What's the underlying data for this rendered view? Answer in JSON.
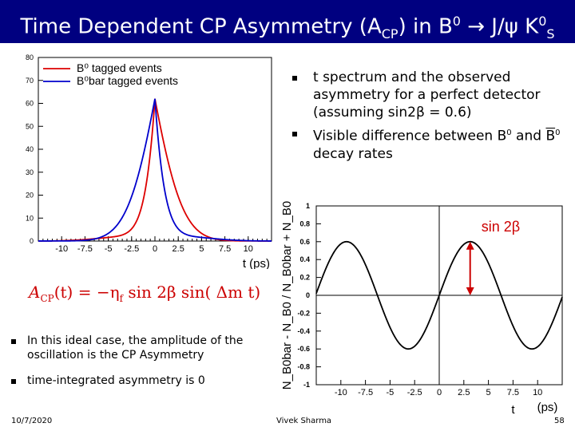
{
  "title": {
    "prefix": "Time Dependent CP Asymmetry (A",
    "sub": "CP",
    "middle": ") in B",
    "sup1": "0",
    "arrow": " → J/ψ K",
    "sup2": "0",
    "sub2": "S"
  },
  "right_bullets": [
    "t spectrum and the observed asymmetry for a perfect detector (assuming sin2β = 0.6)",
    {
      "pre": "Visible difference between B",
      "sup1": "0",
      "mid": " and ",
      "bar": "B",
      "sup2": "0",
      "post": " decay rates"
    }
  ],
  "left_bullets": [
    "In this ideal case, the amplitude of the oscillation is the CP Asymmetry",
    "time-integrated asymmetry is 0"
  ],
  "formula": {
    "lhs": "A",
    "lhs_sub": "CP",
    "arg": "(t) = −η",
    "eta_sub": "f",
    "rest": " sin 2β  sin(   Δm t)"
  },
  "footer": {
    "date": "10/7/2020",
    "author": "Vivek Sharma",
    "page": "58"
  },
  "colors": {
    "title_bar": "#000080",
    "red": "#dd0000",
    "blue": "#0000cc",
    "annotation": "#cc0000"
  },
  "chart_data": [
    {
      "type": "line",
      "legend": {
        "placement": "top-left",
        "entries": [
          {
            "label": "B⁰ tagged events",
            "color": "#dd0000"
          },
          {
            "label": "B⁰bar tagged events",
            "color": "#0000cc"
          }
        ]
      },
      "xlabel": "t (ps)",
      "xlim": [
        -12.5,
        12.5
      ],
      "ylim": [
        0,
        80
      ],
      "xticks": [
        "-10",
        "-7.5",
        "-5",
        "-2.5",
        "0",
        "2.5",
        "5",
        "7.5",
        "10"
      ],
      "xtick_values": [
        -10,
        -7.5,
        -5,
        -2.5,
        0,
        2.5,
        5,
        7.5,
        10
      ],
      "yticks": [
        "0",
        "10",
        "20",
        "30",
        "40",
        "50",
        "60",
        "70",
        "80"
      ],
      "ytick_values": [
        0,
        10,
        20,
        30,
        40,
        50,
        60,
        70,
        80
      ],
      "series": [
        {
          "name": "B⁰ tagged events",
          "color": "#dd0000",
          "peak": 62,
          "tau": 1.55,
          "dm": 0.5,
          "s2b": 0.6,
          "sign": 1
        },
        {
          "name": "B⁰bar tagged events",
          "color": "#0000cc",
          "peak": 62,
          "tau": 1.55,
          "dm": 0.5,
          "s2b": 0.6,
          "sign": -1
        }
      ]
    },
    {
      "type": "line",
      "ylabel": "N_B0bar - N_B0 / N_B0bar + N_B0",
      "xlabel": "t",
      "xlabel_unit": "(ps)",
      "annotation": "sin 2β",
      "xlim": [
        -12.5,
        12.5
      ],
      "ylim": [
        -1,
        1
      ],
      "xticks": [
        "-10",
        "-7.5",
        "-5",
        "-2.5",
        "0",
        "2.5",
        "5",
        "7.5",
        "10"
      ],
      "xtick_values": [
        -10,
        -7.5,
        -5,
        -2.5,
        0,
        2.5,
        5,
        7.5,
        10
      ],
      "yticks": [
        "-1",
        "-0.8",
        "-0.6",
        "-0.4",
        "-0.2",
        "0",
        "0.2",
        "0.4",
        "0.6",
        "0.8",
        "1"
      ],
      "ytick_values": [
        -1,
        -0.8,
        -0.6,
        -0.4,
        -0.2,
        0,
        0.2,
        0.4,
        0.6,
        0.8,
        1
      ],
      "series": [
        {
          "amplitude": 0.6,
          "dm": 0.5,
          "color": "#000000"
        }
      ]
    }
  ]
}
